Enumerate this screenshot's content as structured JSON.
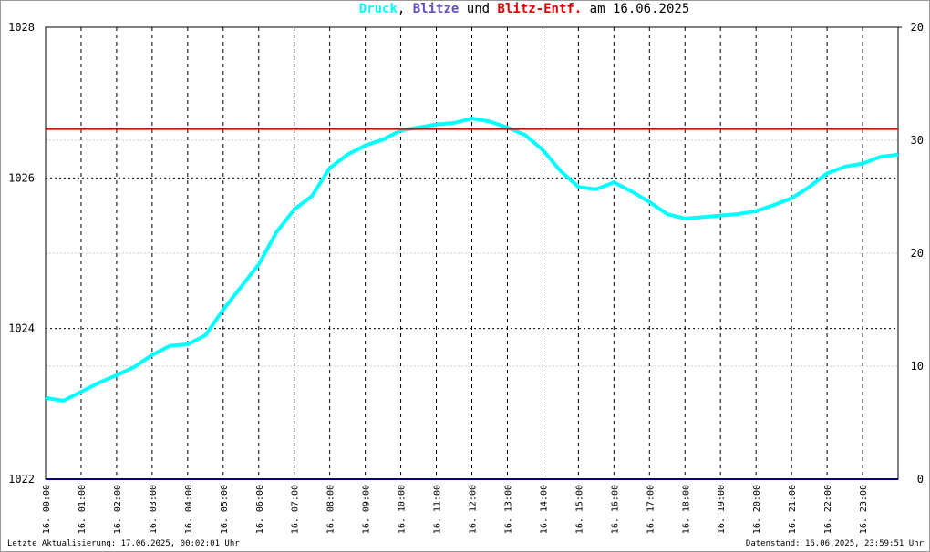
{
  "chart_data": {
    "type": "line",
    "title_connectors": [
      ",",
      "und",
      "am 16.06.2025"
    ],
    "footer_left": "Letzte Aktualisierung: 17.06.2025, 00:02:01 Uhr",
    "footer_right": "Datenstand: 16.06.2025, 23:59:51 Uhr",
    "grid": true,
    "xlim": [
      0,
      24
    ],
    "xticks": [
      {
        "value": 0,
        "label": "16. 00:00"
      },
      {
        "value": 1,
        "label": "16. 01:00"
      },
      {
        "value": 2,
        "label": "16. 02:00"
      },
      {
        "value": 3,
        "label": "16. 03:00"
      },
      {
        "value": 4,
        "label": "16. 04:00"
      },
      {
        "value": 5,
        "label": "16. 05:00"
      },
      {
        "value": 6,
        "label": "16. 06:00"
      },
      {
        "value": 7,
        "label": "16. 07:00"
      },
      {
        "value": 8,
        "label": "16. 08:00"
      },
      {
        "value": 9,
        "label": "16. 09:00"
      },
      {
        "value": 10,
        "label": "16. 10:00"
      },
      {
        "value": 11,
        "label": "16. 11:00"
      },
      {
        "value": 12,
        "label": "16. 12:00"
      },
      {
        "value": 13,
        "label": "16. 13:00"
      },
      {
        "value": 14,
        "label": "16. 14:00"
      },
      {
        "value": 15,
        "label": "16. 15:00"
      },
      {
        "value": 16,
        "label": "16. 16:00"
      },
      {
        "value": 17,
        "label": "16. 17:00"
      },
      {
        "value": 18,
        "label": "16. 18:00"
      },
      {
        "value": 19,
        "label": "16. 19:00"
      },
      {
        "value": 20,
        "label": "16. 20:00"
      },
      {
        "value": 21,
        "label": "16. 21:00"
      },
      {
        "value": 22,
        "label": "16. 22:00"
      },
      {
        "value": 23,
        "label": "16. 23:00"
      }
    ],
    "ylim": [
      1022,
      1028
    ],
    "yticks": [
      1022,
      1024,
      1026,
      1028
    ],
    "y2lim": [
      0,
      40
    ],
    "y2ticks": [
      0,
      10,
      20,
      30
    ],
    "y3lim": [
      0,
      20
    ],
    "y3ticks": [
      20
    ],
    "series": [
      {
        "name": "Druck",
        "color": "#00ffff",
        "axis": "y",
        "x": [
          0,
          0.5,
          1,
          1.5,
          2,
          2.5,
          3,
          3.5,
          4,
          4.5,
          5,
          5.5,
          6,
          6.5,
          7,
          7.5,
          8,
          8.5,
          9,
          9.5,
          10,
          10.5,
          11,
          11.5,
          12,
          12.5,
          13,
          13.5,
          14,
          14.5,
          15,
          15.5,
          16,
          16.5,
          17,
          17.5,
          18,
          18.5,
          19,
          19.5,
          20,
          20.5,
          21,
          21.5,
          22,
          22.5,
          23,
          23.5,
          24
        ],
        "values": [
          1023.08,
          1023.04,
          1023.16,
          1023.28,
          1023.38,
          1023.49,
          1023.65,
          1023.77,
          1023.79,
          1023.91,
          1024.25,
          1024.55,
          1024.85,
          1025.28,
          1025.58,
          1025.76,
          1026.13,
          1026.31,
          1026.43,
          1026.51,
          1026.63,
          1026.67,
          1026.71,
          1026.73,
          1026.79,
          1026.75,
          1026.67,
          1026.57,
          1026.37,
          1026.09,
          1025.88,
          1025.85,
          1025.94,
          1025.82,
          1025.68,
          1025.52,
          1025.46,
          1025.48,
          1025.5,
          1025.52,
          1025.56,
          1025.64,
          1025.73,
          1025.88,
          1026.06,
          1026.15,
          1026.19,
          1026.28,
          1026.31
        ]
      },
      {
        "name": "Blitze",
        "color": "#000080",
        "axis": "y3",
        "x": [
          0,
          24
        ],
        "values": [
          0,
          0
        ]
      },
      {
        "name": "Blitz-Entf.",
        "color": "#e00000",
        "axis": "y2",
        "x": [
          0,
          24
        ],
        "values": [
          31,
          31
        ]
      }
    ]
  }
}
